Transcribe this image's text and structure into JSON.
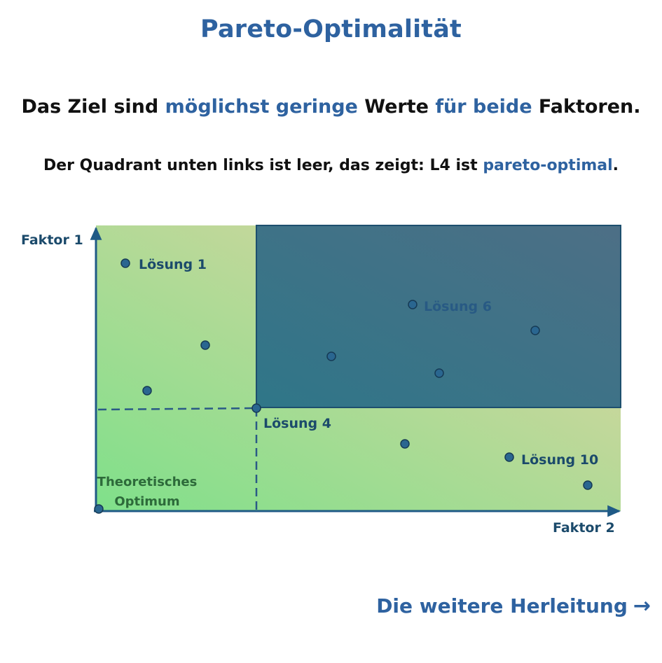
{
  "title": "Pareto-Optimalität",
  "subtitle": {
    "p1": "Das Ziel sind ",
    "h1": "möglichst geringe",
    "p2": " Werte ",
    "h2": "für beide",
    "p3": " Faktoren."
  },
  "note": {
    "p1": "Der Quadrant unten links ist leer, das zeigt: L4 ist ",
    "h1": "pareto-optimal",
    "p2": "."
  },
  "diagram": {
    "y_axis_label": "Faktor 1",
    "x_axis_label": "Faktor 2",
    "optimum_label_line1": "Theoretisches",
    "optimum_label_line2": "Optimum",
    "labels": {
      "l1": "Lösung 1",
      "l4": "Lösung 4",
      "l6": "Lösung 6",
      "l10": "Lösung 10"
    },
    "colors": {
      "accent": "#2e62a0",
      "dominated_region": "#2c6381",
      "axis": "#1f5a86",
      "point_fill": "#2a6690",
      "gradient_green": "#7fe08a",
      "gradient_tan": "#e6d3a3"
    }
  },
  "footer": {
    "link_text": "Die weitere Herleitung",
    "arrow_icon": "→"
  }
}
